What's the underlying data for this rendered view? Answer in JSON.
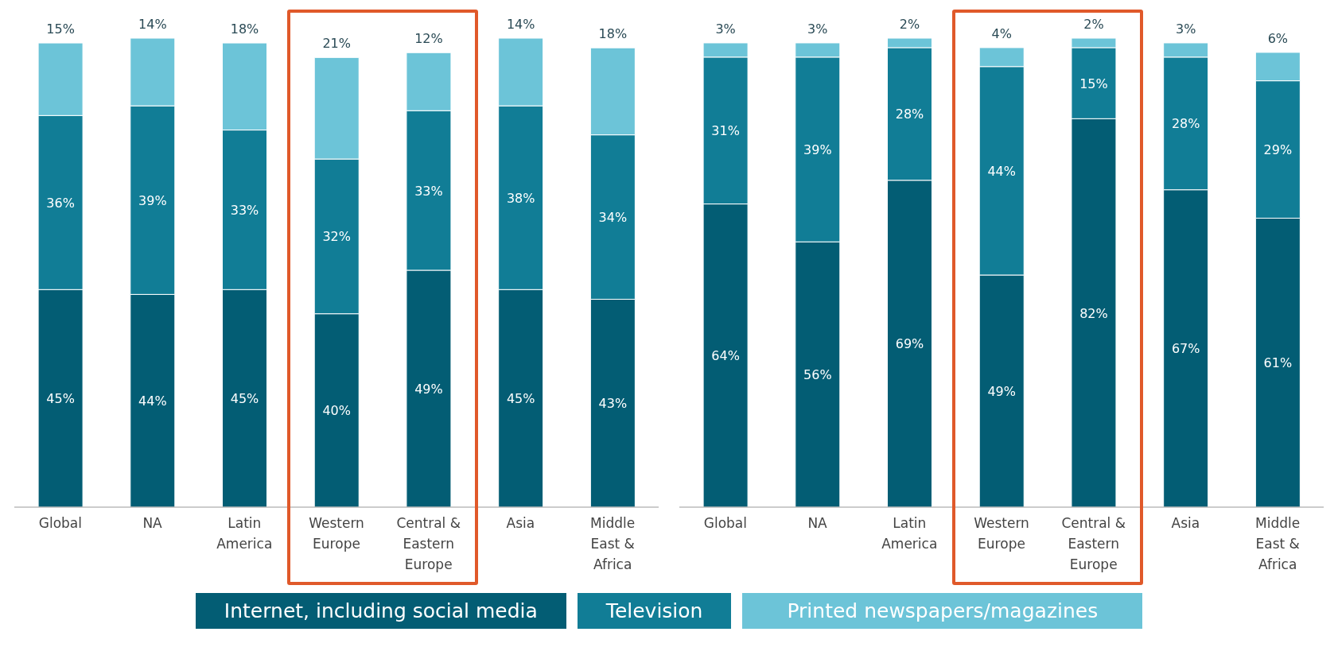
{
  "chart_data": [
    {
      "type": "bar",
      "stacked": true,
      "legend": "bottom",
      "categories": [
        "Global",
        "NA",
        "Latin America",
        "Western Europe",
        "Central & Eastern Europe",
        "Asia",
        "Middle East & Africa"
      ],
      "series": [
        {
          "name": "Internet, including social media",
          "color": "#035d74",
          "values": [
            45,
            44,
            45,
            40,
            49,
            45,
            43
          ],
          "value_labels": [
            "45%",
            "44%",
            "45%",
            "40%",
            "49%",
            "45%",
            "43%"
          ]
        },
        {
          "name": "Television",
          "color": "#117d96",
          "values": [
            36,
            39,
            33,
            32,
            33,
            38,
            34
          ],
          "value_labels": [
            "36%",
            "39%",
            "33%",
            "32%",
            "33%",
            "38%",
            "34%"
          ]
        },
        {
          "name": "Printed newspapers/magazines",
          "color": "#6cc4d8",
          "values": [
            15,
            14,
            18,
            21,
            12,
            14,
            18
          ],
          "value_labels": [
            "15%",
            "14%",
            "18%",
            "21%",
            "12%",
            "14%",
            "18%"
          ]
        }
      ]
    },
    {
      "type": "bar",
      "stacked": true,
      "categories": [
        "Global",
        "NA",
        "Latin America",
        "Western Europe",
        "Central & Eastern Europe",
        "Asia",
        "Middle East & Africa"
      ],
      "series": [
        {
          "color": "#035d74",
          "values": [
            64,
            56,
            69,
            49,
            82,
            67,
            61
          ],
          "value_labels": [
            "64%",
            "56%",
            "69%",
            "49%",
            "82%",
            "67%",
            "61%"
          ]
        },
        {
          "color": "#117d96",
          "values": [
            31,
            39,
            28,
            44,
            15,
            28,
            29
          ],
          "value_labels": [
            "31%",
            "39%",
            "28%",
            "44%",
            "15%",
            "28%",
            "29%"
          ]
        },
        {
          "color": "#6cc4d8",
          "values": [
            3,
            3,
            2,
            4,
            2,
            3,
            6
          ],
          "value_labels": [
            "3%",
            "3%",
            "2%",
            "4%",
            "2%",
            "3%",
            "6%"
          ]
        }
      ]
    }
  ]
}
